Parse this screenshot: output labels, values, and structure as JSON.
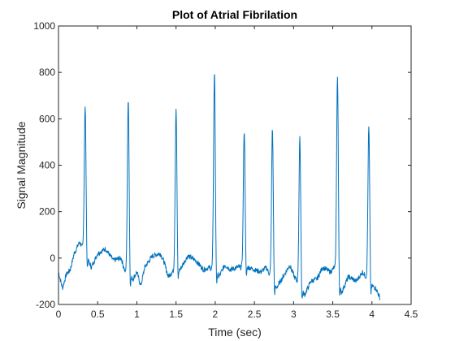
{
  "chart_data": {
    "type": "line",
    "title": "Plot of Atrial Fibrilation",
    "xlabel": "Time (sec)",
    "ylabel": "Signal Magnitude",
    "xlim": [
      0,
      4.5
    ],
    "ylim": [
      -200,
      1000
    ],
    "xticks": [
      "0",
      "0.5",
      "1",
      "1.5",
      "2",
      "2.5",
      "3",
      "3.5",
      "4",
      "4.5"
    ],
    "yticks": [
      "-200",
      "0",
      "200",
      "400",
      "600",
      "800",
      "1000"
    ],
    "grid": false,
    "line_color": "#0072BD",
    "series": [
      {
        "peaks": [
          {
            "t": 0.34,
            "v": 655
          },
          {
            "t": 0.89,
            "v": 690
          },
          {
            "t": 1.5,
            "v": 645
          },
          {
            "t": 1.99,
            "v": 800
          },
          {
            "t": 2.37,
            "v": 550
          },
          {
            "t": 2.73,
            "v": 555
          },
          {
            "t": 3.08,
            "v": 515
          },
          {
            "t": 3.56,
            "v": 780
          },
          {
            "t": 3.96,
            "v": 565
          }
        ],
        "baseline": [
          [
            0.0,
            -60
          ],
          [
            0.05,
            -130
          ],
          [
            0.1,
            -70
          ],
          [
            0.15,
            -50
          ],
          [
            0.2,
            20
          ],
          [
            0.27,
            70
          ],
          [
            0.42,
            -40
          ],
          [
            0.5,
            20
          ],
          [
            0.6,
            40
          ],
          [
            0.7,
            -10
          ],
          [
            0.8,
            0
          ],
          [
            0.85,
            -60
          ],
          [
            0.95,
            -90
          ],
          [
            1.0,
            -60
          ],
          [
            1.05,
            -120
          ],
          [
            1.1,
            -40
          ],
          [
            1.2,
            10
          ],
          [
            1.3,
            20
          ],
          [
            1.35,
            -20
          ],
          [
            1.4,
            -80
          ],
          [
            1.45,
            -60
          ],
          [
            1.55,
            -50
          ],
          [
            1.65,
            10
          ],
          [
            1.75,
            -10
          ],
          [
            1.85,
            -50
          ],
          [
            1.93,
            -40
          ],
          [
            2.05,
            -80
          ],
          [
            2.12,
            -30
          ],
          [
            2.2,
            -50
          ],
          [
            2.28,
            -40
          ],
          [
            2.42,
            -40
          ],
          [
            2.5,
            -50
          ],
          [
            2.58,
            -60
          ],
          [
            2.65,
            -40
          ],
          [
            2.78,
            -130
          ],
          [
            2.85,
            -90
          ],
          [
            2.95,
            -30
          ],
          [
            3.01,
            -80
          ],
          [
            3.14,
            -160
          ],
          [
            3.22,
            -100
          ],
          [
            3.3,
            -90
          ],
          [
            3.37,
            -40
          ],
          [
            3.47,
            -60
          ],
          [
            3.52,
            -40
          ],
          [
            3.61,
            -150
          ],
          [
            3.7,
            -80
          ],
          [
            3.8,
            -100
          ],
          [
            3.88,
            -60
          ],
          [
            4.0,
            -120
          ],
          [
            4.05,
            -130
          ],
          [
            4.1,
            -170
          ]
        ]
      }
    ]
  }
}
